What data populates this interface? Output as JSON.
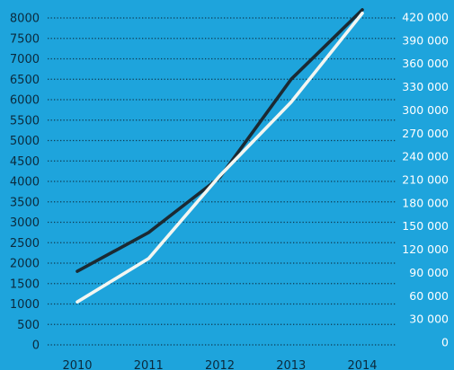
{
  "chart_data": {
    "type": "line",
    "x": [
      "2010",
      "2011",
      "2012",
      "2013",
      "2014"
    ],
    "y_left": {
      "ticks": [
        "0",
        "500",
        "1000",
        "1500",
        "2000",
        "2500",
        "3000",
        "3500",
        "4000",
        "4500",
        "5000",
        "5500",
        "6000",
        "6500",
        "7000",
        "7500",
        "8000"
      ],
      "ylim": [
        0,
        8000
      ]
    },
    "y_right": {
      "ticks": [
        "0",
        "30 000",
        "60 000",
        "90 000",
        "120 000",
        "150 000",
        "180 000",
        "210 000",
        "240 000",
        "270 000",
        "300 000",
        "330 000",
        "360 000",
        "390 000",
        "420 000"
      ],
      "ylim": [
        0,
        420000
      ]
    },
    "grid": true,
    "series": [
      {
        "axis": "left",
        "color": "#1b2a33",
        "values": [
          1800,
          2750,
          4100,
          6500,
          8200
        ]
      },
      {
        "axis": "right",
        "color": "#f2f6f2",
        "values": [
          52000,
          108000,
          215000,
          310000,
          425000
        ]
      }
    ]
  }
}
